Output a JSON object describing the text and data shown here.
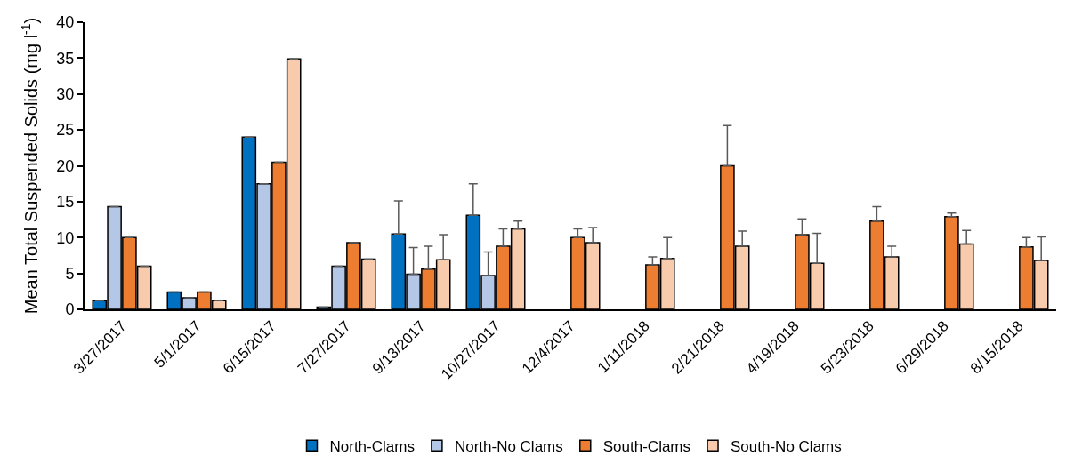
{
  "chart_data": {
    "type": "bar",
    "ylabel": "Mean Total Suspended Solids (mg l$^{-1}$)",
    "categories": [
      "3/27/2017",
      "5/1/2017",
      "6/15/2017",
      "7/27/2017",
      "9/13/2017",
      "10/27/2017",
      "12/4/2017",
      "1/11/2018",
      "2/21/2018",
      "4/19/2018",
      "5/23/2018",
      "6/29/2018",
      "8/15/2018"
    ],
    "ylim": [
      0,
      40
    ],
    "yticks": [
      0,
      5,
      10,
      15,
      20,
      25,
      30,
      35,
      40
    ],
    "legend": "bottom",
    "series": [
      {
        "name": "North-Clams",
        "color": "#0070c0",
        "values": [
          1.2,
          2.4,
          24,
          0.3,
          10.5,
          13.1,
          null,
          null,
          null,
          null,
          null,
          null,
          null
        ],
        "errors": [
          null,
          null,
          null,
          null,
          [
            10.5,
            15.1
          ],
          [
            13.1,
            17.5
          ],
          null,
          null,
          null,
          null,
          null,
          null,
          null
        ]
      },
      {
        "name": "North-No Clams",
        "color": "#b4c7e7",
        "values": [
          14.3,
          1.6,
          17.5,
          6,
          4.9,
          4.7,
          null,
          null,
          null,
          null,
          null,
          null,
          null
        ],
        "errors": [
          null,
          null,
          null,
          null,
          [
            4.9,
            8.6
          ],
          [
            4.7,
            8
          ],
          null,
          null,
          null,
          null,
          null,
          null,
          null
        ]
      },
      {
        "name": "South-Clams",
        "color": "#ed7d31",
        "values": [
          10,
          2.4,
          20.5,
          9.3,
          5.6,
          8.8,
          10,
          6.2,
          20,
          10.4,
          12.3,
          12.9,
          8.7
        ],
        "errors": [
          null,
          null,
          null,
          null,
          [
            5.6,
            8.8
          ],
          [
            8.8,
            11.2
          ],
          [
            10,
            11.2
          ],
          [
            6.2,
            7.3
          ],
          [
            20,
            25.6
          ],
          [
            10.4,
            12.6
          ],
          [
            12.3,
            14.3
          ],
          [
            12.9,
            13.4
          ],
          [
            8.7,
            10
          ]
        ]
      },
      {
        "name": "South-No Clams",
        "color": "#f8cbad",
        "values": [
          6,
          1.2,
          34.9,
          7,
          6.9,
          11.2,
          9.3,
          7.1,
          8.8,
          6.4,
          7.3,
          9.1,
          6.8
        ],
        "errors": [
          null,
          null,
          null,
          null,
          [
            6.9,
            10.4
          ],
          [
            11.2,
            12.3
          ],
          [
            9.3,
            11.4
          ],
          [
            7.1,
            10
          ],
          [
            8.8,
            10.9
          ],
          [
            6.4,
            10.6
          ],
          [
            7.3,
            8.8
          ],
          [
            9.1,
            11
          ],
          [
            6.8,
            10.1
          ]
        ]
      }
    ]
  }
}
